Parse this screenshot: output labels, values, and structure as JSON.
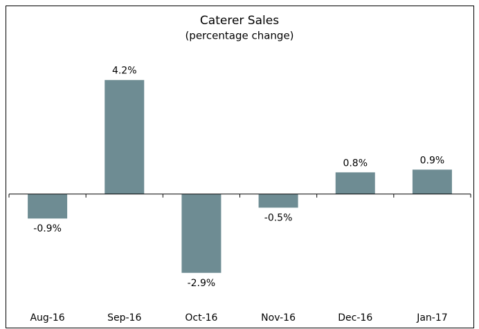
{
  "chart_data": {
    "type": "bar",
    "title": "Caterer Sales",
    "subtitle": "(percentage change)",
    "categories": [
      "Aug-16",
      "Sep-16",
      "Oct-16",
      "Nov-16",
      "Dec-16",
      "Jan-17"
    ],
    "values": [
      -0.9,
      4.2,
      -2.9,
      -0.5,
      0.8,
      0.9
    ],
    "value_labels": [
      "-0.9%",
      "4.2%",
      "-2.9%",
      "-0.5%",
      "0.8%",
      "0.9%"
    ],
    "color": "#6e8c93",
    "ylim": [
      -4,
      6
    ]
  }
}
